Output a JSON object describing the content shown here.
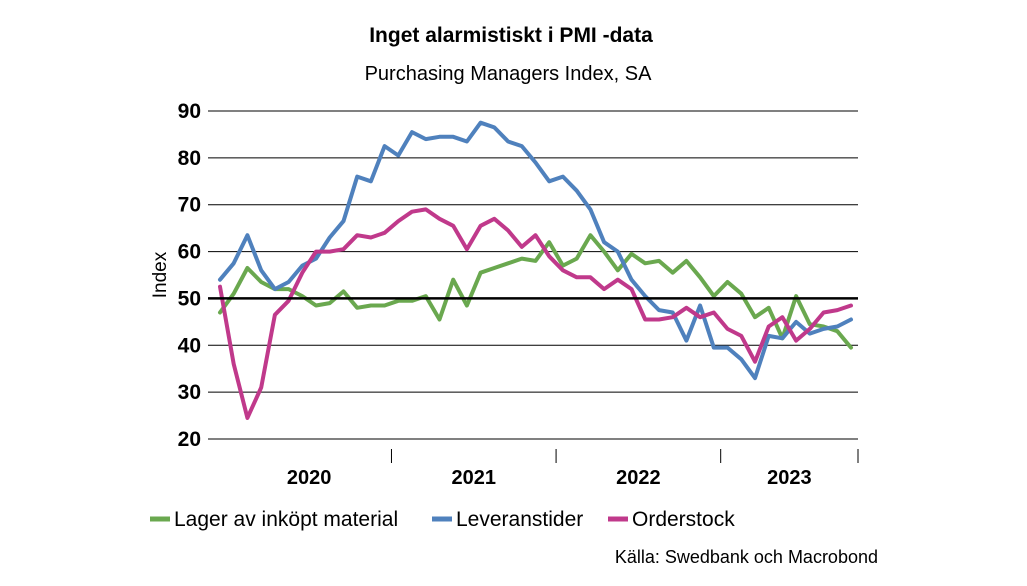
{
  "chart_data": {
    "type": "line",
    "title": "Inget alarmistiskt i PMI -data",
    "subtitle": "Purchasing Managers Index, SA",
    "ylabel": "Index",
    "xlabel": "",
    "ylim": [
      20,
      90
    ],
    "yticks": [
      20,
      30,
      40,
      50,
      60,
      70,
      80,
      90
    ],
    "reference_line": 50,
    "grid": true,
    "legend_position": "bottom",
    "x_start": "2019-12",
    "x_labels": [
      "2020",
      "2021",
      "2022",
      "2023"
    ],
    "source": "Källa: Swedbank och Macrobond",
    "series": [
      {
        "name": "Lager av inköpt material",
        "color": "#6aa84f",
        "values": [
          47,
          51,
          56.5,
          53.5,
          52,
          52,
          50.5,
          48.5,
          49,
          51.5,
          48,
          48.5,
          48.5,
          49.5,
          49.5,
          50.5,
          45.5,
          54,
          48.5,
          55.5,
          56.5,
          57.5,
          58.5,
          58,
          62,
          57,
          58.5,
          63.5,
          60,
          56,
          59.5,
          57.5,
          58,
          55.5,
          58,
          54.5,
          50.5,
          53.5,
          51,
          46,
          48,
          41.5,
          50.5,
          44.5,
          44,
          43,
          39.5
        ]
      },
      {
        "name": "Leveranstider",
        "color": "#4f81bd",
        "values": [
          54,
          57.5,
          63.5,
          56,
          52,
          53.5,
          57,
          58.5,
          63,
          66.5,
          76,
          75,
          82.5,
          80.5,
          85.5,
          84,
          84.5,
          84.5,
          83.5,
          87.5,
          86.5,
          83.5,
          82.5,
          79,
          75,
          76,
          73,
          69,
          62,
          60,
          54,
          50.5,
          47.5,
          47,
          41,
          48.5,
          39.5,
          39.5,
          37,
          33,
          42,
          41.5,
          45,
          42.5,
          43.5,
          44,
          45.5
        ]
      },
      {
        "name": "Orderstock",
        "color": "#c0398b",
        "values": [
          52.5,
          36,
          24.5,
          31,
          46.5,
          49.5,
          55.5,
          60,
          60,
          60.5,
          63.5,
          63,
          64,
          66.5,
          68.5,
          69,
          67,
          65.5,
          60.5,
          65.5,
          67,
          64.5,
          61,
          63.5,
          59,
          56,
          54.5,
          54.5,
          52,
          54,
          52,
          45.5,
          45.5,
          46,
          48,
          46,
          47,
          43.5,
          42,
          36.5,
          44,
          46,
          41,
          43.5,
          47,
          47.5,
          48.5
        ]
      }
    ]
  }
}
